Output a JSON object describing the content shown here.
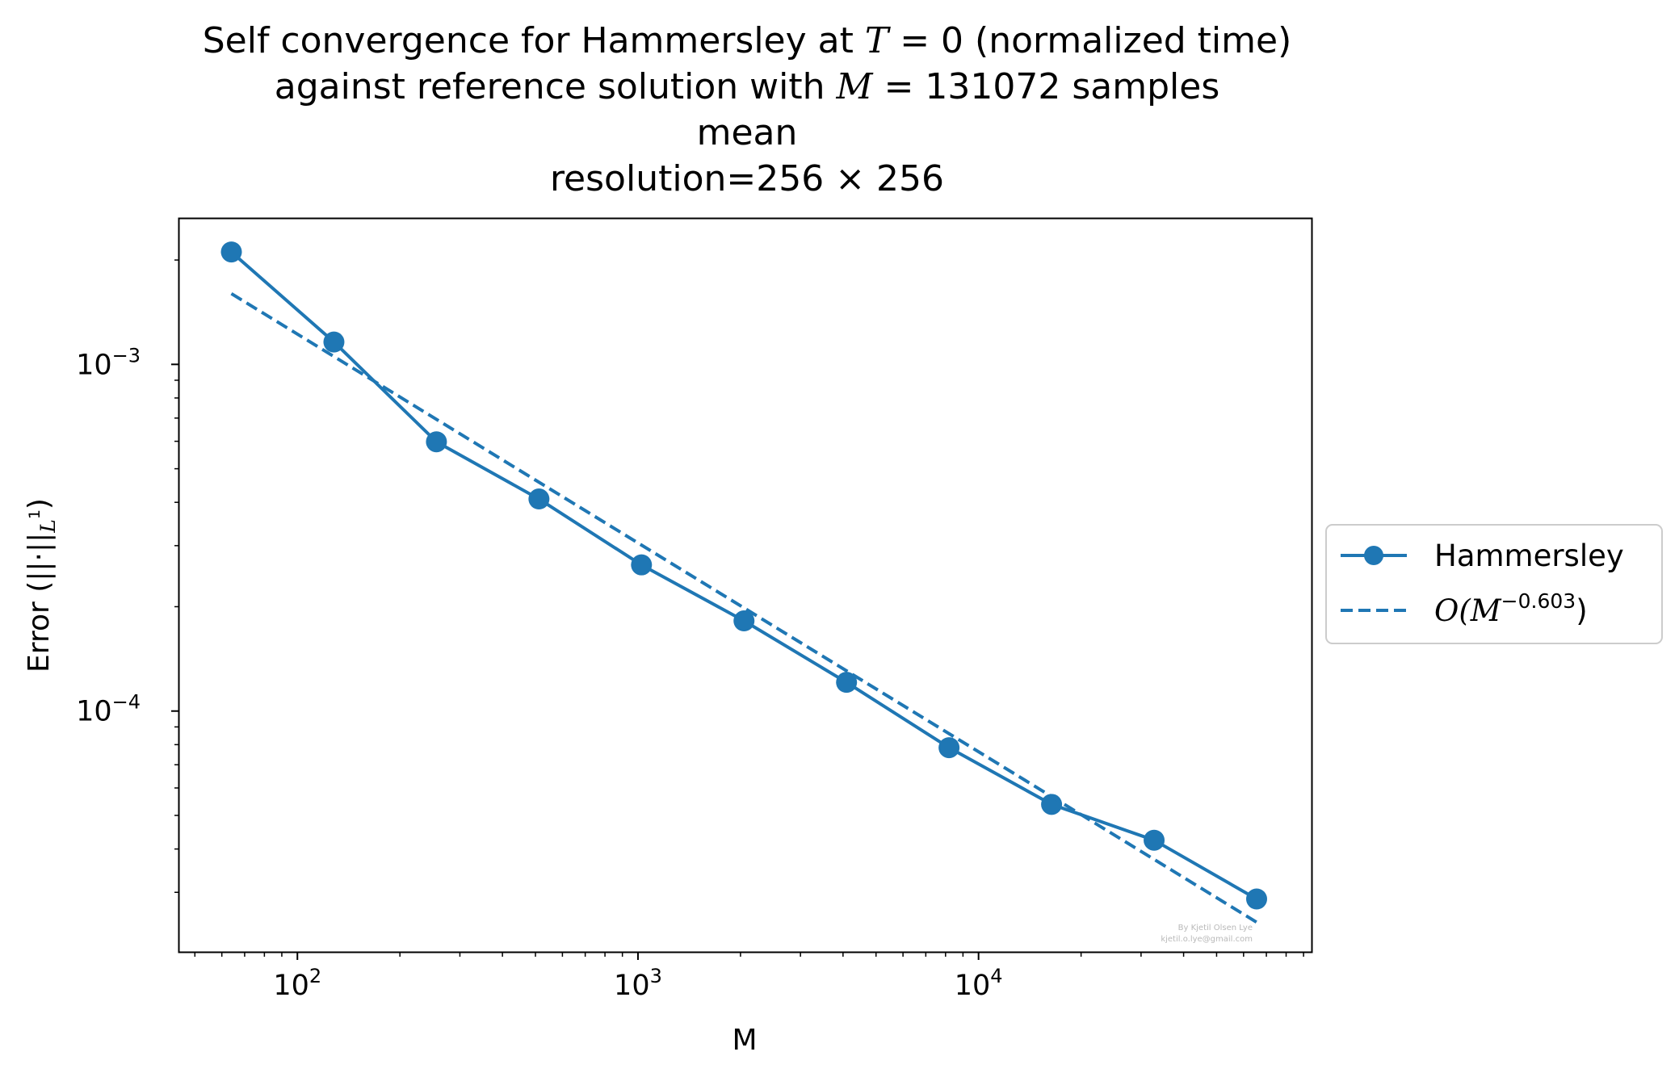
{
  "chart_data": {
    "type": "line",
    "title": {
      "line1_pre": "Self convergence for Hammersley at ",
      "line1_var": "T",
      "line1_mid": " = 0 (normalized time)",
      "line2_pre": "against reference solution with ",
      "line2_var": "M",
      "line2_mid": " = 131072 samples",
      "line3": "mean",
      "line4": "resolution=256 × 256"
    },
    "xlabel": "M",
    "ylabel": "Error (||·||",
    "ylabel_sub": "L",
    "ylabel_sup": "1",
    "ylabel_end": ")",
    "xscale": "log",
    "yscale": "log",
    "xlim": [
      45,
      95000
    ],
    "ylim": [
      2.02e-05,
      0.00263
    ],
    "x_major_ticks": [
      100,
      1000,
      10000
    ],
    "x_tick_labels": [
      {
        "base": "10",
        "exp": "2"
      },
      {
        "base": "10",
        "exp": "3"
      },
      {
        "base": "10",
        "exp": "4"
      }
    ],
    "y_major_ticks": [
      0.001,
      0.0001
    ],
    "y_tick_labels": [
      {
        "base": "10",
        "exp": "−3"
      },
      {
        "base": "10",
        "exp": "−4"
      }
    ],
    "grid": false,
    "legend_placement": "outside-right",
    "series": [
      {
        "name": "Hammersley",
        "style": "solid-line-with-circle-markers",
        "color": "#1f77b4",
        "x": [
          64,
          128,
          256,
          512,
          1024,
          2048,
          4096,
          8192,
          16384,
          32768,
          65536
        ],
        "y": [
          0.00211,
          0.00116,
          0.000598,
          0.000409,
          0.000264,
          0.000182,
          0.000121,
          7.84e-05,
          5.38e-05,
          4.24e-05,
          2.87e-05
        ]
      },
      {
        "name": "O(M^−0.603)",
        "legend_pre": "O(",
        "legend_var": "M",
        "legend_exp": "−0.603",
        "legend_post": ")",
        "style": "dashed-line",
        "color": "#1f77b4",
        "x": [
          64,
          65536
        ],
        "y": [
          0.0016,
          2.46e-05
        ]
      }
    ]
  },
  "watermark": {
    "line1": "By Kjetil Olsen Lye",
    "line2": "kjetil.o.lye@gmail.com"
  }
}
